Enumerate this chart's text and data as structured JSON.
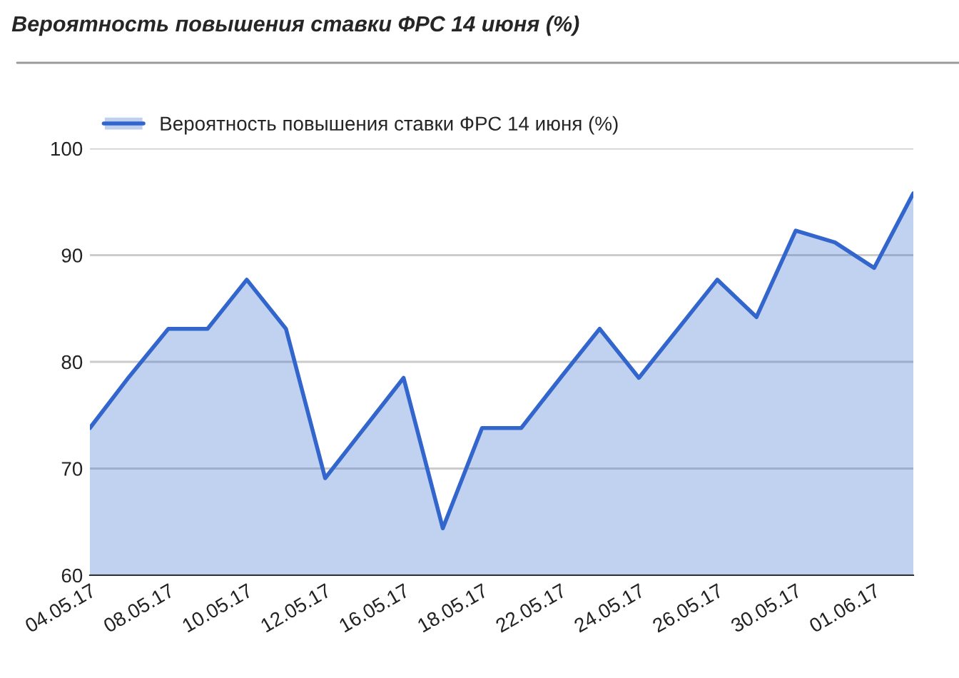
{
  "chart_data": {
    "type": "area",
    "title": "Вероятность повышения ставки ФРС 14 июня (%)",
    "categories": [
      "04.05.17",
      null,
      "08.05.17",
      null,
      "10.05.17",
      null,
      "12.05.17",
      null,
      "16.05.17",
      null,
      "18.05.17",
      null,
      "22.05.17",
      null,
      "24.05.17",
      null,
      "26.05.17",
      null,
      "30.05.17",
      null,
      "01.06.17",
      null
    ],
    "series": [
      {
        "name": "Вероятность повышения ставки ФРС 14 июня (%)",
        "color": "#3366cc",
        "values": [
          73.8,
          78.6,
          83.1,
          83.1,
          87.7,
          83.1,
          69.1,
          73.8,
          78.5,
          64.4,
          73.8,
          73.8,
          78.5,
          83.1,
          78.5,
          83.1,
          87.7,
          84.2,
          92.3,
          91.2,
          88.8,
          95.8
        ]
      }
    ],
    "ylim": [
      60,
      100
    ],
    "yticks": [
      60,
      70,
      80,
      90,
      100
    ],
    "grid": "y",
    "legend": "top left"
  }
}
